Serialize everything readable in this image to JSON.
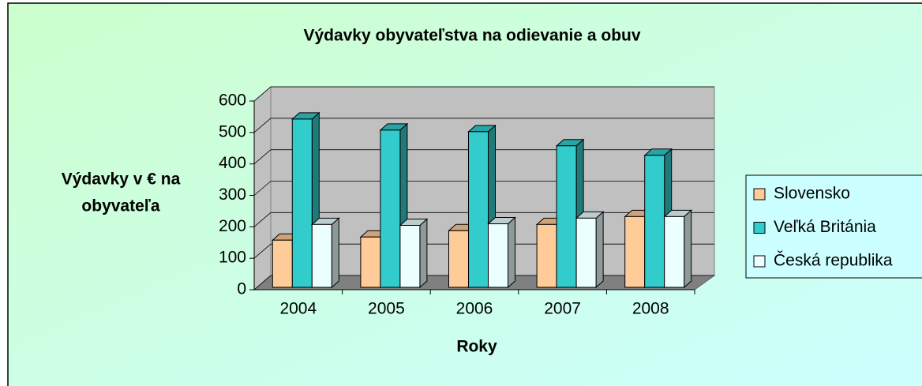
{
  "chart_data": {
    "type": "bar3d",
    "title": "Výdavky obyvateľstva na odievanie a obuv",
    "y_label": [
      "Výdavky v € na",
      "obyvateľa"
    ],
    "x_label": "Roky",
    "categories": [
      "2004",
      "2005",
      "2006",
      "2007",
      "2008"
    ],
    "series": [
      {
        "name": "Slovensko",
        "color": "#ffcc99",
        "values": [
          150,
          160,
          180,
          200,
          225
        ]
      },
      {
        "name": "Veľká Británia",
        "color": "#33cccc",
        "values": [
          535,
          500,
          495,
          450,
          420
        ]
      },
      {
        "name": "Česká republika",
        "color": "#ecffff",
        "values": [
          200,
          197,
          202,
          220,
          225
        ]
      }
    ],
    "ylim": [
      0,
      600
    ],
    "yticks": [
      0,
      100,
      200,
      300,
      400,
      500,
      600
    ],
    "grid": true,
    "legend": "right"
  }
}
